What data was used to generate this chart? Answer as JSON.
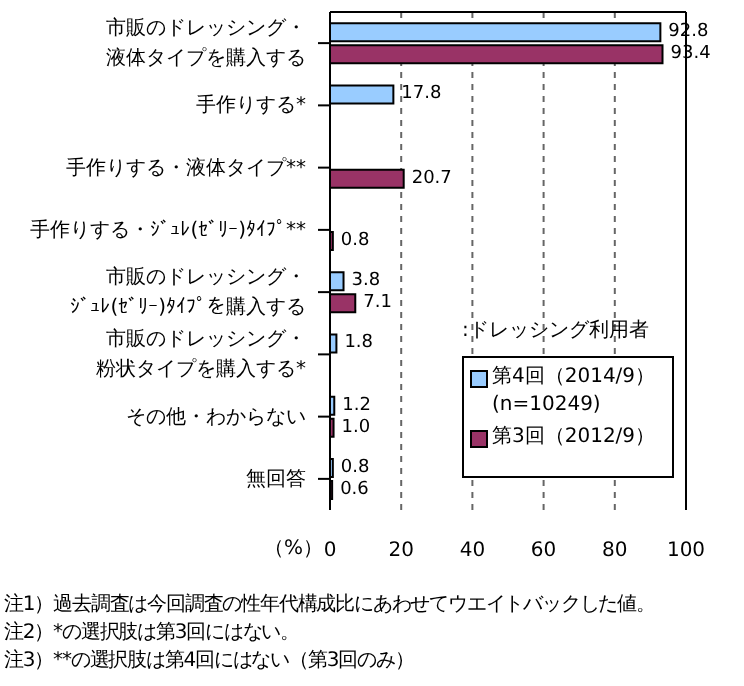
{
  "chart_data": {
    "type": "bar",
    "orientation": "horizontal",
    "categories": [
      "市販のドレッシング・液体タイプを購入する",
      "手作りする*",
      "手作りする・液体タイプ**",
      "手作りする・ｼﾞｭﾚ(ｾﾞﾘｰ)ﾀｲﾌﾟ**",
      "市販のドレッシング・ｼﾞｭﾚ(ｾﾞﾘｰ)ﾀｲﾌﾟを購入する",
      "市販のドレッシング・粉状タイプを購入する*",
      "その他・わからない",
      "無回答"
    ],
    "series": [
      {
        "name": "第4回（2014/9）\n(n=10249)",
        "color": "#99ccff",
        "values": [
          92.8,
          17.8,
          null,
          null,
          3.8,
          1.8,
          1.2,
          0.8
        ],
        "value_labels": [
          "92.8",
          "17.8",
          null,
          null,
          "3.8",
          "1.8",
          "1.2",
          "0.8"
        ]
      },
      {
        "name": "第3回（2012/9）",
        "color": "#993366",
        "values": [
          93.4,
          null,
          20.7,
          0.8,
          7.1,
          null,
          1.0,
          0.6
        ],
        "value_labels": [
          "93.4",
          null,
          "20.7",
          "0.8",
          "7.1",
          null,
          "1.0",
          "0.6"
        ]
      }
    ],
    "xlim": [
      0,
      100
    ],
    "xticks": [
      0,
      20,
      40,
      60,
      80,
      100
    ],
    "xlabel": "（%）",
    "grid": "x",
    "legend": "bottom right",
    "legend_title": ":ドレッシング利用者",
    "annotations": [
      "注1）過去調査は今回調査の性年代構成比にあわせてウエイトバックした値。",
      "注2）*の選択肢は第3回にはない。",
      "注3）**の選択肢は第4回にはない（第3回のみ）"
    ]
  }
}
